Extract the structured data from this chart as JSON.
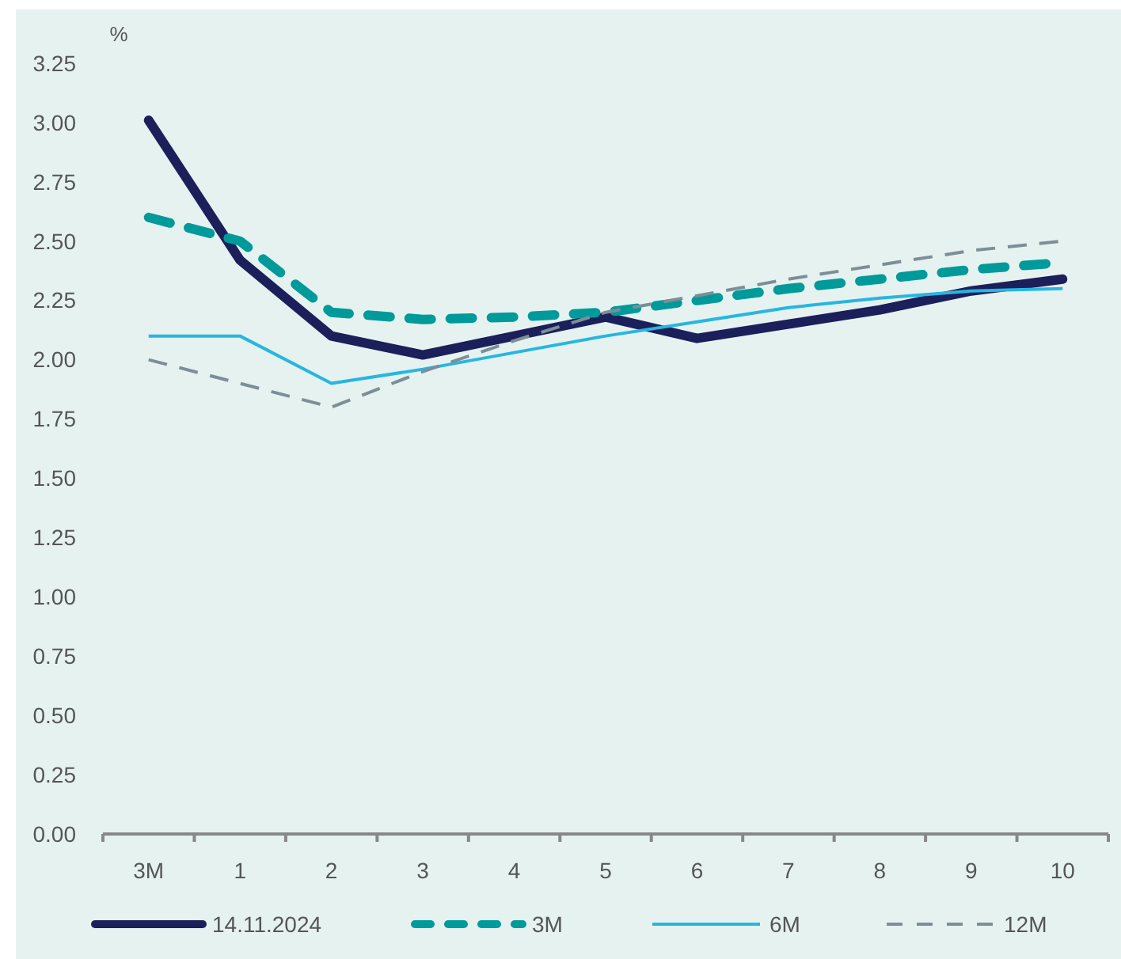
{
  "chart_data": {
    "type": "line",
    "ylabel": "%",
    "categories": [
      "3M",
      "1",
      "2",
      "3",
      "4",
      "5",
      "6",
      "7",
      "8",
      "9",
      "10"
    ],
    "series": [
      {
        "name": "14.11.2024",
        "color": "#1b1f5a",
        "line_style": "solid",
        "values": [
          3.01,
          2.42,
          2.1,
          2.02,
          2.1,
          2.18,
          2.09,
          2.15,
          2.21,
          2.29,
          2.34
        ]
      },
      {
        "name": "3M",
        "color": "#009a9a",
        "line_style": "dashed",
        "values": [
          2.6,
          2.5,
          2.2,
          2.17,
          2.18,
          2.2,
          2.25,
          2.3,
          2.34,
          2.38,
          2.41
        ]
      },
      {
        "name": "6M",
        "color": "#27b6e0",
        "line_style": "solid",
        "values": [
          2.1,
          2.1,
          1.9,
          1.96,
          2.03,
          2.1,
          2.16,
          2.22,
          2.26,
          2.29,
          2.3
        ]
      },
      {
        "name": "12M",
        "color": "#7c8e98",
        "line_style": "dashed",
        "values": [
          2.0,
          1.9,
          1.8,
          1.95,
          2.08,
          2.2,
          2.27,
          2.34,
          2.4,
          2.46,
          2.5
        ]
      }
    ],
    "ylim": [
      0,
      3.25
    ],
    "yticks": [
      {
        "value": 0,
        "label": "0.00"
      },
      {
        "value": 0.25,
        "label": "0.25"
      },
      {
        "value": 0.5,
        "label": "0.50"
      },
      {
        "value": 0.75,
        "label": "0.75"
      },
      {
        "value": 1,
        "label": "1.00"
      },
      {
        "value": 1.25,
        "label": "1.25"
      },
      {
        "value": 1.5,
        "label": "1.50"
      },
      {
        "value": 1.75,
        "label": "1.75"
      },
      {
        "value": 2,
        "label": "2.00"
      },
      {
        "value": 2.25,
        "label": "2.25"
      },
      {
        "value": 2.5,
        "label": "2.50"
      },
      {
        "value": 2.75,
        "label": "2.75"
      },
      {
        "value": 3,
        "label": "3.00"
      },
      {
        "value": 3.25,
        "label": "3.25"
      }
    ],
    "grid": false,
    "legend": "bottom"
  }
}
